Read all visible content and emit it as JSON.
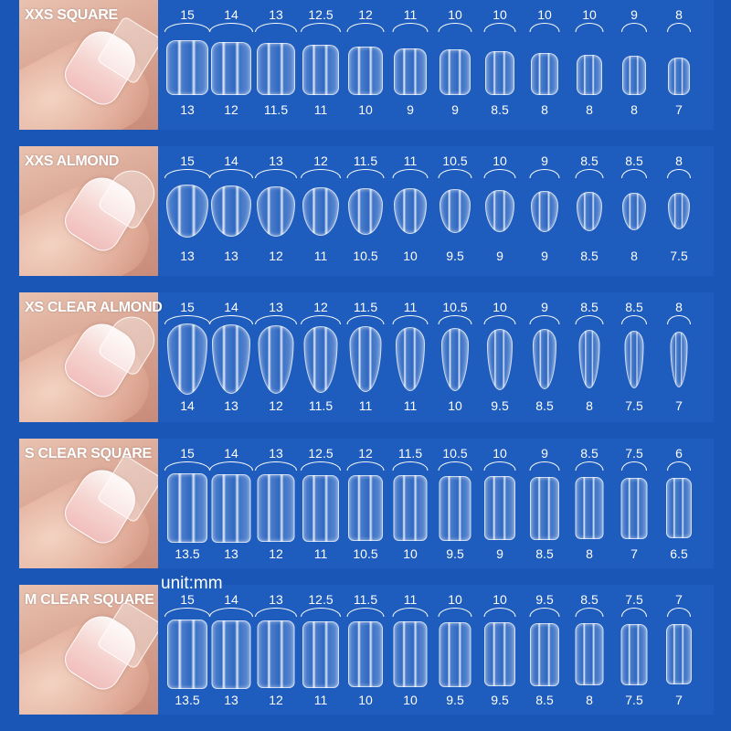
{
  "unit_label": "unit:mm",
  "rows": [
    {
      "title": "XXS SQUARE",
      "shape": "square",
      "top": [
        "15",
        "14",
        "13",
        "12.5",
        "12",
        "11",
        "10",
        "10",
        "10",
        "10",
        "9",
        "8"
      ],
      "bottom": [
        "13",
        "12",
        "11.5",
        "11",
        "10",
        "9",
        "9",
        "8.5",
        "8",
        "8",
        "8",
        "7"
      ]
    },
    {
      "title": "XXS ALMOND",
      "shape": "almond",
      "top": [
        "15",
        "14",
        "13",
        "12",
        "11.5",
        "11",
        "10.5",
        "10",
        "9",
        "8.5",
        "8.5",
        "8"
      ],
      "bottom": [
        "13",
        "13",
        "12",
        "11",
        "10.5",
        "10",
        "9.5",
        "9",
        "9",
        "8.5",
        "8",
        "7.5"
      ]
    },
    {
      "title": "XS CLEAR ALMOND",
      "shape": "almond-long",
      "top": [
        "15",
        "14",
        "13",
        "12",
        "11.5",
        "11",
        "10.5",
        "10",
        "9",
        "8.5",
        "8.5",
        "8"
      ],
      "bottom": [
        "14",
        "13",
        "12",
        "11.5",
        "11",
        "11",
        "10",
        "9.5",
        "8.5",
        "8",
        "7.5",
        "7"
      ]
    },
    {
      "title": "S CLEAR SQUARE",
      "shape": "square-long",
      "top": [
        "15",
        "14",
        "13",
        "12.5",
        "12",
        "11.5",
        "10.5",
        "10",
        "9",
        "8.5",
        "7.5",
        "6"
      ],
      "bottom": [
        "13.5",
        "13",
        "12",
        "11",
        "10.5",
        "10",
        "9.5",
        "9",
        "8.5",
        "8",
        "7",
        "6.5"
      ]
    },
    {
      "title": "M CLEAR SQUARE",
      "shape": "square-long",
      "top": [
        "15",
        "14",
        "13",
        "12.5",
        "11.5",
        "11",
        "10",
        "10",
        "9.5",
        "8.5",
        "7.5",
        "7"
      ],
      "bottom": [
        "13.5",
        "13",
        "12",
        "11",
        "10",
        "10",
        "9.5",
        "9.5",
        "8.5",
        "8",
        "7.5",
        "7"
      ]
    }
  ]
}
